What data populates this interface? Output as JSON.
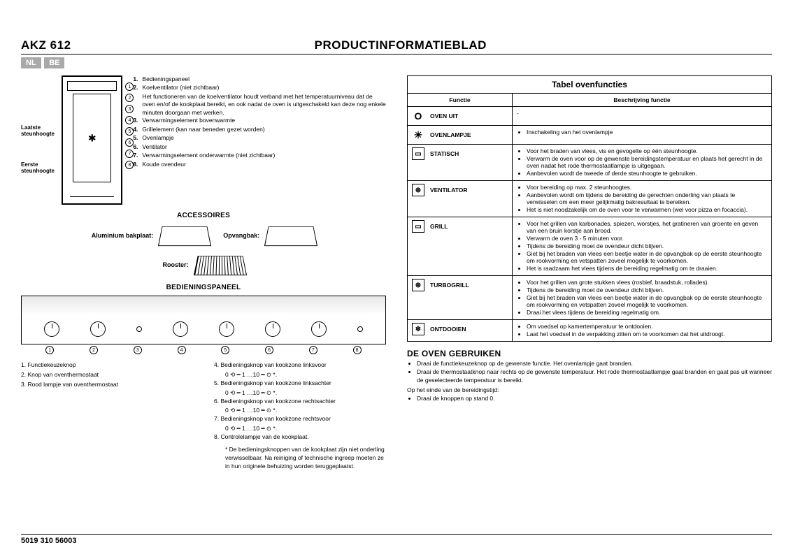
{
  "header": {
    "model": "AKZ 612",
    "title": "PRODUCTINFORMATIEBLAD",
    "badges": [
      "NL",
      "BE"
    ]
  },
  "ovenLabels": {
    "top": "Laatste steunhoogte",
    "bottom": "Eerste steunhoogte"
  },
  "partsList": [
    {
      "n": "1.",
      "t": "Bedieningspaneel"
    },
    {
      "n": "2.",
      "t": "Koelventilator (niet zichtbaar)",
      "extra": "Het functioneren van de koelventilator houdt verband met het temperatuurniveau dat de oven en/of de kookplaat bereikt, en ook nadat de oven is uitgeschakeld kan deze nog enkele minuten doorgaan met werken."
    },
    {
      "n": "3.",
      "t": "Verwarmingselement bovenwarmte"
    },
    {
      "n": "4.",
      "t": "Grillelement (kan naar beneden gezet worden)"
    },
    {
      "n": "5.",
      "t": "Ovenlampje"
    },
    {
      "n": "6.",
      "t": "Ventilator"
    },
    {
      "n": "7.",
      "t": "Verwarmingselement onderwarmte (niet zichtbaar)"
    },
    {
      "n": "8.",
      "t": "Koude ovendeur"
    }
  ],
  "accessoriesTitle": "ACCESSOIRES",
  "accessories": {
    "a1": "Aluminium bakplaat:",
    "a2": "Opvangbak:",
    "a3": "Rooster:"
  },
  "panelTitle": "BEDIENINGSPANEEL",
  "panelLegend": {
    "left": [
      {
        "n": "1.",
        "t": "Functiekeuzeknop"
      },
      {
        "n": "2.",
        "t": "Knop van oventhermostaat"
      },
      {
        "n": "3.",
        "t": "Rood lampje van oventhermostaat"
      }
    ],
    "right": [
      {
        "n": "4.",
        "t": "Bedieningsknop van kookzone linksvoor",
        "sub": "0 ⟲ ━ 1 …10 ━ ⊙ *."
      },
      {
        "n": "5.",
        "t": "Bedieningsknop van kookzone linksachter",
        "sub": "0 ⟲ ━ 1 …10 ━ ⊙ *."
      },
      {
        "n": "6.",
        "t": "Bedieningsknop van kookzone rechtsachter",
        "sub": "0 ⟲ ━ 1 …10 ━ ⊙ *."
      },
      {
        "n": "7.",
        "t": "Bedieningsknop van kookzone rechtsvoor",
        "sub": "0 ⟲ ━ 1 …10 ━ ⊙ *."
      },
      {
        "n": "8.",
        "t": "Controlelampje van de kookplaat."
      }
    ],
    "note": "* De bedieningsknoppen van de kookplaat zijn niet onderling verwisselbaar. Na reiniging of technische ingreep moeten ze in hun originele behuizing worden teruggeplaatst."
  },
  "table": {
    "title": "Tabel ovenfuncties",
    "h1": "Functie",
    "h2": "Beschrijving functie",
    "rows": [
      {
        "icon": "O",
        "iconClass": "noborder",
        "name": "OVEN UIT",
        "desc": [
          "-"
        ]
      },
      {
        "icon": "☀",
        "iconClass": "noborder",
        "name": "OVENLAMPJE",
        "desc": [
          "Inschakeling van het ovenlampje"
        ]
      },
      {
        "icon": "▭",
        "name": "STATISCH",
        "desc": [
          "Voor het braden van vlees, vis en gevogelte op één steunhoogte.",
          "Verwarm de oven voor op de gewenste bereidingstemperatuur en plaats het gerecht in de oven nadat het rode thermostaatlampje is uitgegaan.",
          "Aanbevolen wordt de tweede of derde steunhoogte te gebruiken."
        ]
      },
      {
        "icon": "⊛",
        "name": "VENTILATOR",
        "desc": [
          "Voor bereiding op max. 2 steunhoogtes.",
          "Aanbevolen wordt om tijdens de bereiding de gerechten onderling van plaats te verwisselen om een meer gelijkmatig bakresultaat te bereiken.",
          "Het is niet noodzakelijk om de oven voor te verwarmen (wel voor pizza en focaccia)."
        ]
      },
      {
        "icon": "▭",
        "name": "GRILL",
        "desc": [
          "Voor het grillen van karbonades, spiezen, worstjes, het gratineren van groente en geven van een bruin korstje aan brood.",
          "Verwarm de oven 3 - 5 minuten voor.",
          "Tijdens de bereiding moet de ovendeur dicht blijven.",
          "Giet bij het braden van vlees een beetje water in de opvangbak op de eerste steunhoogte om rookvorming en vetspatten zoveel mogelijk te voorkomen.",
          "Het is raadzaam het vlees tijdens de bereiding regelmatig om te draaien."
        ]
      },
      {
        "icon": "⊛",
        "name": "TURBOGRILL",
        "desc": [
          "Voor het grillen van grote stukken vlees (rosbief, braadstuk, rollades).",
          "Tijdens de bereiding moet de ovendeur dicht blijven.",
          "Giet bij het braden van vlees een beetje water in de opvangbak op de eerste steunhoogte om rookvorming en vetspatten zoveel mogelijk te voorkomen.",
          "Draai het vlees tijdens de bereiding regelmatig om."
        ]
      },
      {
        "icon": "❄",
        "name": "ONTDOOIEN",
        "desc": [
          "Om voedsel op kamertemperatuur te ontdooien.",
          "Laat het voedsel in de verpakking zitten om te voorkomen dat het uitdroogt."
        ]
      }
    ]
  },
  "usage": {
    "title": "DE OVEN GEBRUIKEN",
    "bullets": [
      "Draai de functiekeuzeknop op de gewenste functie. Het ovenlampje gaat branden.",
      "Draai de thermostaatknop naar rechts op de gewenste temperatuur. Het rode thermostaatlampje gaat branden en gaat pas uit wanneer de geselecteerde temperatuur is bereikt."
    ],
    "endLabel": "Op het einde van de bereidingstijd:",
    "endBullets": [
      "Draai de knoppen op stand 0."
    ]
  },
  "footer": "5019 310 56003",
  "colors": {
    "badgeBg": "#a9a9a9",
    "text": "#000000",
    "bg": "#ffffff"
  }
}
